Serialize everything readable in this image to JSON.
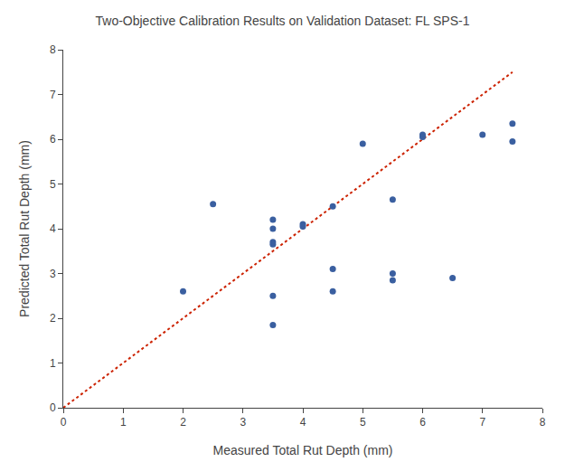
{
  "chart_data": {
    "type": "scatter",
    "title": "Two-Objective Calibration Results on Validation Dataset: FL SPS-1",
    "xlabel": "Measured Total Rut Depth (mm)",
    "ylabel": "Predicted Total Rut Depth (mm)",
    "xlim": [
      0,
      8
    ],
    "ylim": [
      0,
      8
    ],
    "xticks": [
      0,
      1,
      2,
      3,
      4,
      5,
      6,
      7,
      8
    ],
    "yticks": [
      0,
      1,
      2,
      3,
      4,
      5,
      6,
      7,
      8
    ],
    "grid": false,
    "series": [
      {
        "type": "scatter",
        "marker": "circle",
        "color": "#3a5fa0",
        "x": [
          2.0,
          2.5,
          3.5,
          3.5,
          3.5,
          3.5,
          3.5,
          3.5,
          4.0,
          4.0,
          4.5,
          4.5,
          4.5,
          5.0,
          5.5,
          5.5,
          5.5,
          6.0,
          6.0,
          6.5,
          7.0,
          7.5,
          7.5
        ],
        "values": [
          2.6,
          4.55,
          4.2,
          4.0,
          3.7,
          3.65,
          2.5,
          1.85,
          4.1,
          4.05,
          4.5,
          3.1,
          2.6,
          5.9,
          4.65,
          3.0,
          2.85,
          6.1,
          6.05,
          2.9,
          6.1,
          6.35,
          5.95
        ]
      },
      {
        "type": "line",
        "line_style": "dotted",
        "color": "#cc2200",
        "x": [
          0,
          7.5
        ],
        "values": [
          0,
          7.5
        ]
      }
    ]
  }
}
